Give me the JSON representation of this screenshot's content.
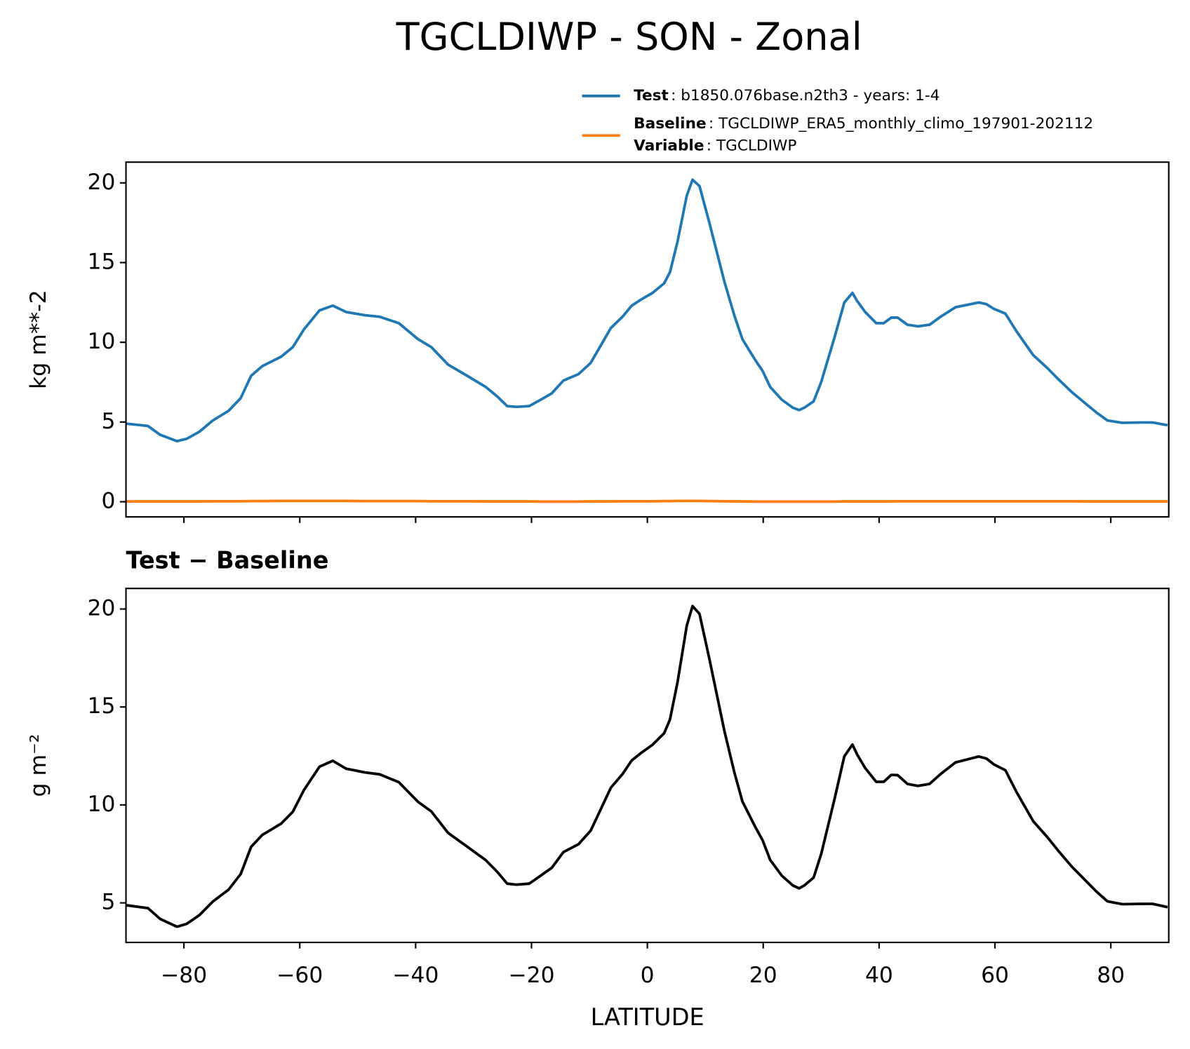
{
  "chart_data": [
    {
      "type": "line",
      "title": "TGCLDIWP - SON - Zonal",
      "ylabel": "kg m**-2",
      "x": [
        -90,
        -86.2,
        -84.1,
        -81.2,
        -79.5,
        -77.3,
        -75,
        -72.3,
        -70.2,
        -68.4,
        -66.5,
        -63.2,
        -61.2,
        -59.3,
        -56.6,
        -54.3,
        -52,
        -48.8,
        -46.2,
        -42.9,
        -39.6,
        -37.3,
        -34.4,
        -31.1,
        -27.9,
        -25.9,
        -24.2,
        -22.6,
        -20.4,
        -18.4,
        -16.5,
        -14.5,
        -11.9,
        -9.8,
        -8.2,
        -6.3,
        -4.3,
        -2.7,
        -1,
        0.9,
        2.9,
        3.9,
        5.2,
        6.8,
        7.8,
        9,
        10.7,
        13.3,
        15,
        16.4,
        18.6,
        19.9,
        21.2,
        23.2,
        25.1,
        26.2,
        27.1,
        28.7,
        30,
        32.3,
        34,
        35.4,
        36.2,
        37.6,
        39.5,
        40.8,
        42.1,
        43.2,
        44.9,
        46.7,
        48.7,
        50.6,
        53.2,
        55.2,
        57.2,
        58.5,
        59.8,
        61.8,
        63.7,
        66.6,
        69,
        70.9,
        73.2,
        75.5,
        77.5,
        79.4,
        82,
        85.3,
        87.2,
        89.8
      ],
      "series": [
        {
          "name": "Test",
          "detail": ": b1850.076base.n2th3 - years: 1-4",
          "color": "#1f77b4",
          "values": [
            4.9,
            4.75,
            4.2,
            3.8,
            3.95,
            4.4,
            5.1,
            5.7,
            6.5,
            7.9,
            8.5,
            9.1,
            9.7,
            10.8,
            12.0,
            12.3,
            11.9,
            11.7,
            11.6,
            11.2,
            10.2,
            9.7,
            8.6,
            7.9,
            7.2,
            6.6,
            6.0,
            5.95,
            6.0,
            6.4,
            6.8,
            7.6,
            8.0,
            8.7,
            9.7,
            10.9,
            11.6,
            12.3,
            12.7,
            13.1,
            13.7,
            14.4,
            16.3,
            19.2,
            20.2,
            19.8,
            17.5,
            13.8,
            11.7,
            10.2,
            8.9,
            8.2,
            7.2,
            6.4,
            5.9,
            5.75,
            5.9,
            6.3,
            7.5,
            10.3,
            12.5,
            13.1,
            12.6,
            11.9,
            11.2,
            11.2,
            11.55,
            11.55,
            11.1,
            11.0,
            11.1,
            11.6,
            12.2,
            12.35,
            12.5,
            12.4,
            12.1,
            11.8,
            10.7,
            9.2,
            8.4,
            7.7,
            6.9,
            6.2,
            5.6,
            5.1,
            4.95,
            4.97,
            4.97,
            4.8
          ]
        },
        {
          "name": "Baseline",
          "detail": ": TGCLDIWP_ERA5_monthly_climo_197901-202112",
          "extra_name": "Variable",
          "extra_detail": ": TGCLDIWP",
          "color": "#ff7f0e",
          "values": [
            0.02,
            0.02,
            0.02,
            0.02,
            0.02,
            0.02,
            0.03,
            0.03,
            0.03,
            0.04,
            0.04,
            0.05,
            0.05,
            0.05,
            0.05,
            0.05,
            0.05,
            0.04,
            0.04,
            0.04,
            0.04,
            0.03,
            0.03,
            0.03,
            0.02,
            0.02,
            0.02,
            0.02,
            0.02,
            0.01,
            0.01,
            0.01,
            0.01,
            0.02,
            0.02,
            0.02,
            0.03,
            0.03,
            0.03,
            0.03,
            0.04,
            0.04,
            0.05,
            0.05,
            0.05,
            0.05,
            0.04,
            0.03,
            0.02,
            0.02,
            0.01,
            0.01,
            0.01,
            0.01,
            0.01,
            0.01,
            0.01,
            0.01,
            0.01,
            0.01,
            0.02,
            0.02,
            0.02,
            0.02,
            0.02,
            0.02,
            0.02,
            0.03,
            0.03,
            0.03,
            0.03,
            0.03,
            0.03,
            0.03,
            0.03,
            0.03,
            0.03,
            0.03,
            0.03,
            0.03,
            0.03,
            0.03,
            0.03,
            0.02,
            0.02,
            0.02,
            0.02,
            0.02,
            0.02,
            0.02
          ]
        }
      ],
      "xlim": [
        -90,
        90
      ],
      "xticks": [
        -80,
        -60,
        -40,
        -20,
        0,
        20,
        40,
        60,
        80
      ],
      "show_xticklabels": false,
      "ylim": [
        -0.95,
        21.3
      ],
      "yticks": [
        0,
        5,
        10,
        15,
        20
      ]
    },
    {
      "type": "line",
      "title": "Test − Baseline",
      "ylabel": "g m⁻²",
      "xlabel": "LATITUDE",
      "x": [
        -90,
        -86.2,
        -84.1,
        -81.2,
        -79.5,
        -77.3,
        -75,
        -72.3,
        -70.2,
        -68.4,
        -66.5,
        -63.2,
        -61.2,
        -59.3,
        -56.6,
        -54.3,
        -52,
        -48.8,
        -46.2,
        -42.9,
        -39.6,
        -37.3,
        -34.4,
        -31.1,
        -27.9,
        -25.9,
        -24.2,
        -22.6,
        -20.4,
        -18.4,
        -16.5,
        -14.5,
        -11.9,
        -9.8,
        -8.2,
        -6.3,
        -4.3,
        -2.7,
        -1,
        0.9,
        2.9,
        3.9,
        5.2,
        6.8,
        7.8,
        9,
        10.7,
        13.3,
        15,
        16.4,
        18.6,
        19.9,
        21.2,
        23.2,
        25.1,
        26.2,
        27.1,
        28.7,
        30,
        32.3,
        34,
        35.4,
        36.2,
        37.6,
        39.5,
        40.8,
        42.1,
        43.2,
        44.9,
        46.7,
        48.7,
        50.6,
        53.2,
        55.2,
        57.2,
        58.5,
        59.8,
        61.8,
        63.7,
        66.6,
        69,
        70.9,
        73.2,
        75.5,
        77.5,
        79.4,
        82,
        85.3,
        87.2,
        89.8
      ],
      "series": [
        {
          "color": "#000000",
          "values": [
            4.88,
            4.73,
            4.18,
            3.78,
            3.93,
            4.38,
            5.07,
            5.67,
            6.47,
            7.86,
            8.46,
            9.05,
            9.65,
            10.75,
            11.95,
            12.25,
            11.85,
            11.66,
            11.56,
            11.16,
            10.16,
            9.67,
            8.57,
            7.87,
            7.18,
            6.58,
            5.98,
            5.93,
            5.98,
            6.39,
            6.79,
            7.59,
            7.99,
            8.68,
            9.68,
            10.88,
            11.57,
            12.27,
            12.67,
            13.07,
            13.66,
            14.36,
            16.25,
            19.15,
            20.15,
            19.75,
            17.46,
            13.77,
            11.68,
            10.18,
            8.89,
            8.19,
            7.19,
            6.39,
            5.89,
            5.74,
            5.89,
            6.29,
            7.49,
            10.29,
            12.48,
            13.08,
            12.58,
            11.88,
            11.18,
            11.18,
            11.53,
            11.52,
            11.07,
            10.97,
            11.07,
            11.57,
            12.17,
            12.32,
            12.47,
            12.37,
            12.07,
            11.77,
            10.67,
            9.17,
            8.37,
            7.67,
            6.87,
            6.18,
            5.58,
            5.08,
            4.93,
            4.95,
            4.95,
            4.78
          ]
        }
      ],
      "xlim": [
        -90,
        90
      ],
      "xticks": [
        {
          "value": -80,
          "label": "−80"
        },
        {
          "value": -60,
          "label": "−60"
        },
        {
          "value": -40,
          "label": "−40"
        },
        {
          "value": -20,
          "label": "−20"
        },
        0,
        20,
        40,
        60,
        80
      ],
      "show_xticklabels": true,
      "ylim": [
        2.98,
        21.05
      ],
      "yticks": [
        5,
        10,
        15,
        20
      ]
    }
  ]
}
